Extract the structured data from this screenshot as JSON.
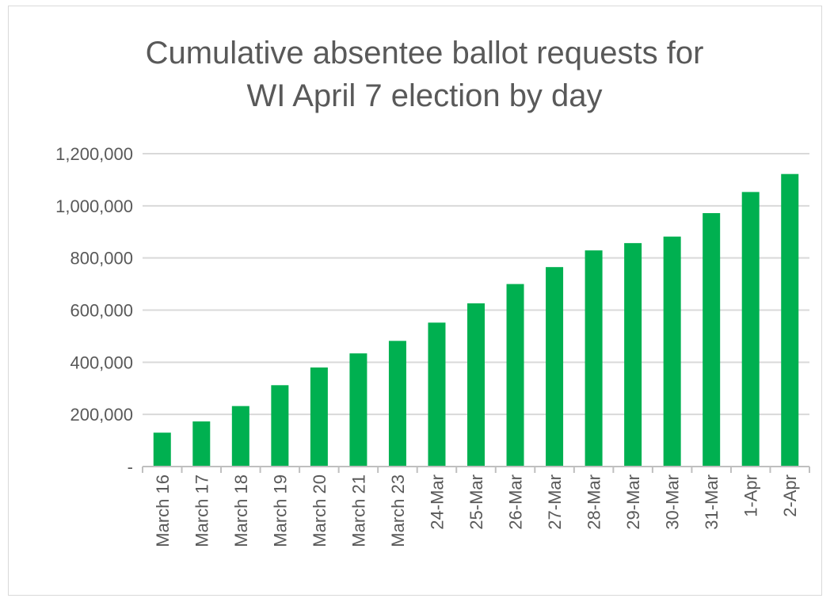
{
  "chart_data": {
    "type": "bar",
    "title_line1": "Cumulative absentee ballot requests for",
    "title_line2": "WI April 7 election by day",
    "xlabel": "",
    "ylabel": "",
    "ylim": [
      0,
      1200000
    ],
    "y_ticks": [
      0,
      200000,
      400000,
      600000,
      800000,
      1000000,
      1200000
    ],
    "y_tick_labels": [
      "-",
      "200,000",
      "400,000",
      "600,000",
      "800,000",
      "1,000,000",
      "1,200,000"
    ],
    "grid": true,
    "legend": "none",
    "bar_color": "#00b050",
    "categories": [
      "March 16",
      "March 17",
      "March 18",
      "March 19",
      "March 20",
      "March 21",
      "March 23",
      "24-Mar",
      "25-Mar",
      "26-Mar",
      "27-Mar",
      "28-Mar",
      "29-Mar",
      "30-Mar",
      "31-Mar",
      "1-Apr",
      "2-Apr"
    ],
    "values": [
      130000,
      173000,
      232000,
      312000,
      380000,
      434000,
      482000,
      552000,
      626000,
      700000,
      765000,
      829000,
      857000,
      882000,
      972000,
      1053000,
      1122000
    ]
  }
}
